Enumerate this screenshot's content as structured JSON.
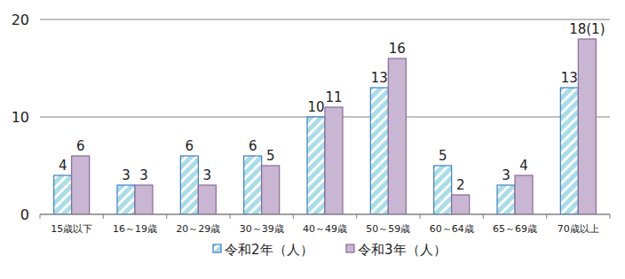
{
  "chart_data": {
    "type": "bar",
    "categories": [
      "15歳以下",
      "16～19歳",
      "20～29歳",
      "30～39歳",
      "40～49歳",
      "50～59歳",
      "60～64歳",
      "65～69歳",
      "70歳以上"
    ],
    "series": [
      {
        "name": "令和2年（人）",
        "color": "#a9dde8",
        "values": [
          4,
          3,
          6,
          6,
          10,
          13,
          5,
          3,
          13
        ]
      },
      {
        "name": "令和3年（人）",
        "color": "#c9b6d3",
        "values": [
          6,
          3,
          3,
          5,
          11,
          16,
          2,
          4,
          18
        ],
        "value_labels": [
          "6",
          "3",
          "3",
          "5",
          "11",
          "16",
          "2",
          "4",
          "18(1)"
        ]
      }
    ],
    "ylim": [
      0,
      20
    ],
    "yticks": [
      0,
      10,
      20
    ],
    "grid": true,
    "data_labels": true,
    "legend": "bottom"
  }
}
